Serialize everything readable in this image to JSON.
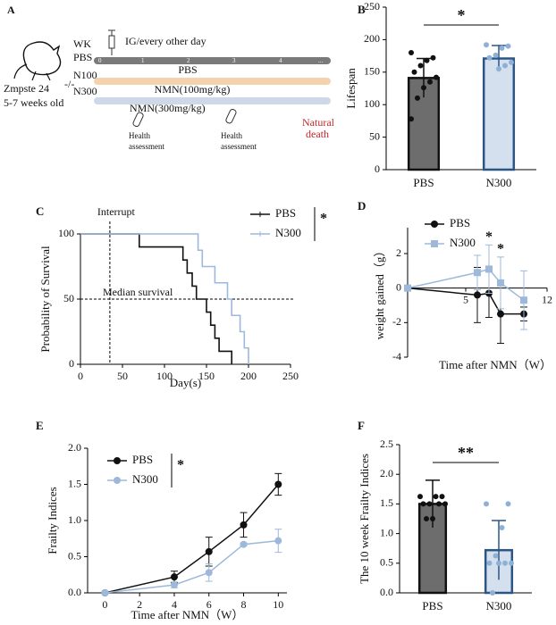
{
  "diagram": {
    "label": "A",
    "week_header": "WK",
    "dosing": "IG/every other day",
    "row_labels": [
      "PBS",
      "N100",
      "N300"
    ],
    "weeks": [
      "0",
      "1",
      "2",
      "3",
      "4",
      "..."
    ],
    "treatments": [
      "PBS",
      "NMN(100mg/kg)",
      "NMN(300mg/kg)"
    ],
    "strain": "Zmpste 24",
    "genotype": "-/-",
    "age": "5-7 weeks old",
    "assessment": [
      [
        "Health",
        "assessment"
      ],
      [
        "Health",
        "assessment"
      ]
    ],
    "endpoint": [
      "Natural",
      "death"
    ]
  },
  "chart_data": [
    {
      "type": "bar",
      "label": "B",
      "categories": [
        "PBS",
        "N300"
      ],
      "values": [
        141,
        171
      ],
      "errors": [
        30,
        20
      ],
      "colors": [
        "#6d6d6d",
        "#d5e0ee"
      ],
      "edge_colors": [
        "#111111",
        "#2b5585"
      ],
      "point_colors": [
        "#111111",
        "#8fb0d6"
      ],
      "points": [
        [
          180,
          172,
          168,
          160,
          150,
          142,
          135,
          126,
          110,
          78
        ],
        [
          192,
          190,
          187,
          176,
          172,
          165,
          160,
          155
        ]
      ],
      "ylim": [
        0,
        250
      ],
      "yticks": [
        0,
        50,
        100,
        150,
        200,
        250
      ],
      "ylabel": "Lifespan",
      "significance": "*"
    },
    {
      "type": "step",
      "label": "C",
      "series": [
        {
          "name": "PBS",
          "color": "#111111",
          "x": [
            0,
            70,
            122,
            127,
            133,
            138,
            150,
            155,
            160,
            165,
            180
          ],
          "values": [
            100,
            90,
            80,
            70,
            60,
            50,
            40,
            30,
            20,
            10,
            0
          ]
        },
        {
          "name": "N300",
          "color": "#9db8da",
          "x": [
            0,
            140,
            145,
            160,
            175,
            180,
            190,
            195,
            200
          ],
          "values": [
            100,
            87.5,
            75,
            62.5,
            50,
            37.5,
            25,
            12.5,
            0
          ]
        }
      ],
      "xlim": [
        0,
        250
      ],
      "xticks": [
        0,
        50,
        100,
        150,
        200,
        250
      ],
      "ylim": [
        0,
        100
      ],
      "yticks": [
        0,
        50,
        100
      ],
      "xlabel": "Day(s)",
      "ylabel": "Probability of Survival",
      "vlines": [
        {
          "value": 35,
          "label": "Interrupt"
        }
      ],
      "hlines": [
        {
          "value": 50,
          "label": "Median survival"
        }
      ],
      "significance": "*"
    },
    {
      "type": "line",
      "label": "D",
      "x": [
        0,
        6,
        7,
        8,
        10
      ],
      "series": [
        {
          "name": "PBS",
          "color": "#111111",
          "marker": "circle",
          "values": [
            0,
            -0.4,
            -0.3,
            -1.5,
            -1.5
          ],
          "errors": [
            0,
            1.6,
            1.4,
            1.7,
            0.4
          ]
        },
        {
          "name": "N300",
          "color": "#9db8da",
          "marker": "square",
          "values": [
            0,
            0.9,
            1.1,
            0.3,
            -0.7
          ],
          "errors": [
            0,
            1,
            1.4,
            1.5,
            1.7
          ]
        }
      ],
      "xlim": [
        0,
        12
      ],
      "xticks": [
        5,
        12
      ],
      "ylim": [
        -4,
        3.5
      ],
      "yticks": [
        -4,
        -2,
        0,
        2
      ],
      "xlabel": "Time after NMN（W）",
      "ylabel": "weight gained（g）",
      "annotations": [
        {
          "x": 7,
          "text": "*"
        },
        {
          "x": 8,
          "text": "*"
        }
      ]
    },
    {
      "type": "line",
      "label": "E",
      "x": [
        0,
        4,
        6,
        8,
        10
      ],
      "series": [
        {
          "name": "PBS",
          "color": "#111111",
          "marker": "circle",
          "values": [
            0,
            0.22,
            0.57,
            0.94,
            1.5
          ],
          "errors": [
            0,
            0.08,
            0.2,
            0.17,
            0.15
          ]
        },
        {
          "name": "N300",
          "color": "#9db8da",
          "marker": "circle",
          "values": [
            0,
            0.11,
            0.28,
            0.67,
            0.72
          ],
          "errors": [
            0,
            0.04,
            0.12,
            0.02,
            0.16
          ]
        }
      ],
      "xlim": [
        -1,
        10.5
      ],
      "xticks": [
        0,
        2,
        4,
        6,
        8,
        10
      ],
      "ylim": [
        0,
        2
      ],
      "yticks": [
        {
          "value": 0,
          "label": "0.0"
        },
        {
          "value": 0.5,
          "label": "0.5"
        },
        {
          "value": 1,
          "label": "1.0"
        },
        {
          "value": 1.5,
          "label": "1.5"
        },
        {
          "value": 2,
          "label": "2.0"
        }
      ],
      "xlabel": "Time after NMN（W）",
      "ylabel": "Frailty Indices",
      "significance": "*"
    },
    {
      "type": "bar",
      "label": "F",
      "categories": [
        "PBS",
        "N300"
      ],
      "values": [
        1.5,
        0.72
      ],
      "errors": [
        0.4,
        0.5
      ],
      "colors": [
        "#6d6d6d",
        "#d5e0ee"
      ],
      "edge_colors": [
        "#111111",
        "#2b5585"
      ],
      "point_colors": [
        "#111111",
        "#8fb0d6"
      ],
      "points": [
        [
          1.625,
          1.625,
          1.625,
          1.5,
          1.5,
          1.5,
          1.5,
          1.25,
          1.25
        ],
        [
          1.5,
          1.5,
          1.1,
          0.625,
          0.5,
          0.5,
          0.5,
          0.5,
          0
        ]
      ],
      "ylim": [
        0,
        2.5
      ],
      "yticks": [
        {
          "value": 0,
          "label": "0.0"
        },
        {
          "value": 0.5,
          "label": "0.5"
        },
        {
          "value": 1,
          "label": "1.0"
        },
        {
          "value": 1.5,
          "label": "1.5"
        },
        {
          "value": 2,
          "label": "2.0"
        },
        {
          "value": 2.5,
          "label": "2.5"
        }
      ],
      "ylabel": "The 10 week Frailty Indices",
      "significance": "**"
    }
  ]
}
